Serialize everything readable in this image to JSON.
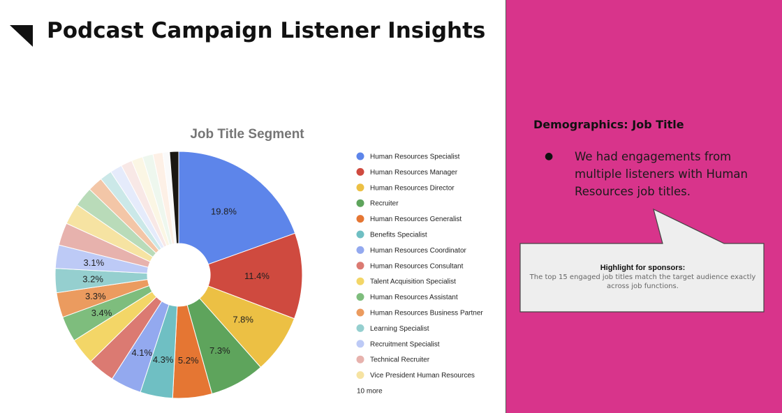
{
  "slide": {
    "title": "Podcast Campaign Listener Insights"
  },
  "right_panel": {
    "heading": "Demographics: Job Title",
    "bullets": [
      "We had engagements from multiple listeners with Human Resources job titles."
    ],
    "callout": {
      "title": "Highlight for sponsors:",
      "body": "The top 15 engaged job titles match the target audience exactly across job functions."
    }
  },
  "colors": {
    "accent_panel": "#d8348b",
    "callout_fill": "#eeeeee"
  },
  "chart_data": {
    "type": "pie",
    "title": "Job Title Segment",
    "donut": true,
    "series": [
      {
        "name": "Human Resources Specialist",
        "value": 19.8,
        "label": "19.8%",
        "color": "#5d85ea"
      },
      {
        "name": "Human Resources Manager",
        "value": 11.4,
        "label": "11.4%",
        "color": "#cf4a3f"
      },
      {
        "name": "Human Resources Director",
        "value": 7.8,
        "label": "7.8%",
        "color": "#ecc044"
      },
      {
        "name": "Recruiter",
        "value": 7.3,
        "label": "7.3%",
        "color": "#5ea45c"
      },
      {
        "name": "Human Resources Generalist",
        "value": 5.2,
        "label": "5.2%",
        "color": "#e57633"
      },
      {
        "name": "Benefits Specialist",
        "value": 4.3,
        "label": "4.3%",
        "color": "#6fbfc3"
      },
      {
        "name": "Human Resources Coordinator",
        "value": 4.1,
        "label": "4.1%",
        "color": "#93a9ef"
      },
      {
        "name": "Human Resources Consultant",
        "value": 3.6,
        "label": "",
        "color": "#db7a72"
      },
      {
        "name": "Talent Acquisition Specialist",
        "value": 3.5,
        "label": "",
        "color": "#f3d667"
      },
      {
        "name": "Human Resources Assistant",
        "value": 3.4,
        "label": "3.4%",
        "color": "#7ebd7d"
      },
      {
        "name": "Human Resources Business Partner",
        "value": 3.3,
        "label": "3.3%",
        "color": "#eb9b5f"
      },
      {
        "name": "Learning Specialist",
        "value": 3.2,
        "label": "3.2%",
        "color": "#95cfcf"
      },
      {
        "name": "Recruitment Specialist",
        "value": 3.1,
        "label": "3.1%",
        "color": "#bdcaf6"
      },
      {
        "name": "Technical Recruiter",
        "value": 3.0,
        "label": "",
        "color": "#e7b2ad"
      },
      {
        "name": "Vice President Human Resources",
        "value": 2.8,
        "label": "",
        "color": "#f6e3a2"
      },
      {
        "name": "",
        "value": 2.6,
        "label": "",
        "color": "#b9dbb9"
      },
      {
        "name": "",
        "value": 2.0,
        "label": "",
        "color": "#f3c6a7"
      },
      {
        "name": "",
        "value": 1.6,
        "label": "",
        "color": "#cbe8e8"
      },
      {
        "name": "",
        "value": 1.6,
        "label": "",
        "color": "#e5ebfb"
      },
      {
        "name": "",
        "value": 1.5,
        "label": "",
        "color": "#f8e8e6"
      },
      {
        "name": "",
        "value": 1.5,
        "label": "",
        "color": "#fbf6e4"
      },
      {
        "name": "",
        "value": 1.4,
        "label": "",
        "color": "#eef7ee"
      },
      {
        "name": "",
        "value": 1.3,
        "label": "",
        "color": "#fdf0e6"
      },
      {
        "name": "",
        "value": 0.9,
        "label": "",
        "color": "#fafafa"
      },
      {
        "name": "",
        "value": 1.2,
        "label": "",
        "color": "#1a1712"
      }
    ],
    "legend": {
      "position": "right",
      "items": [
        "Human Resources Specialist",
        "Human Resources Manager",
        "Human Resources Director",
        "Recruiter",
        "Human Resources Generalist",
        "Benefits Specialist",
        "Human Resources Coordinator",
        "Human Resources Consultant",
        "Talent Acquisition Specialist",
        "Human Resources Assistant",
        "Human Resources Business Partner",
        "Learning Specialist",
        "Recruitment Specialist",
        "Technical Recruiter",
        "Vice President Human Resources"
      ],
      "more": "10 more"
    }
  }
}
